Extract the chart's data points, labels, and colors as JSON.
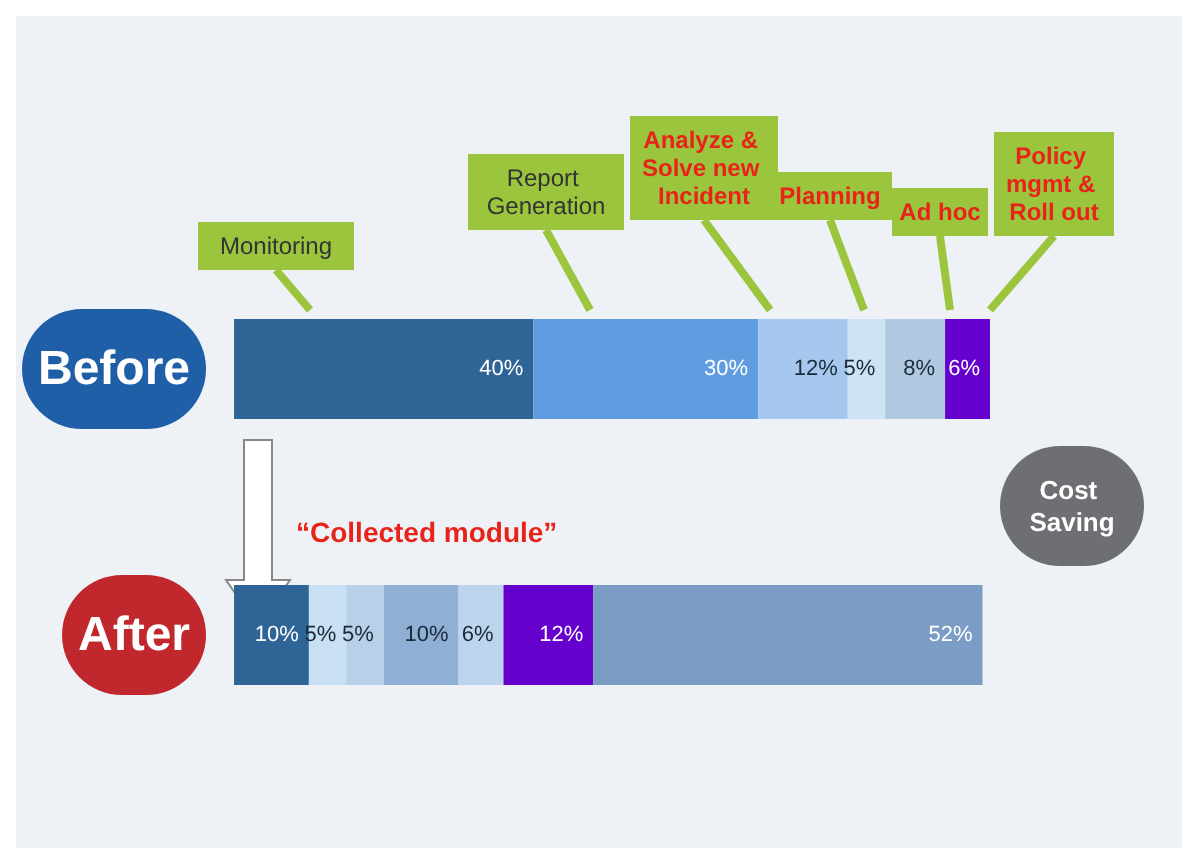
{
  "chart_data": {
    "type": "bar",
    "orientation": "horizontal",
    "stacked": true,
    "tick_labels": "y",
    "categories": [
      "Before",
      "After"
    ],
    "series": [
      {
        "colors": [
          "#2f6496",
          "#2f6496"
        ],
        "values": [
          40,
          10
        ],
        "value_labels": [
          "40%",
          "10%"
        ]
      },
      {
        "colors": [
          "#5f9de0",
          "#c8dff4"
        ],
        "values": [
          30,
          5
        ],
        "value_labels": [
          "30%",
          "5%"
        ]
      },
      {
        "colors": [
          "#a7c8ee",
          "#b8d0e8"
        ],
        "values": [
          12,
          5
        ],
        "value_labels": [
          "12%",
          "5%"
        ]
      },
      {
        "colors": [
          "#cfe3f6",
          "#8fb0d4"
        ],
        "values": [
          5,
          10
        ],
        "value_labels": [
          "5%",
          "10%"
        ]
      },
      {
        "colors": [
          "#b0c8e0",
          "#bcd4ec"
        ],
        "values": [
          8,
          6
        ],
        "value_labels": [
          "8%",
          "6%"
        ]
      },
      {
        "colors": [
          "#6600cc",
          "#6600cc"
        ],
        "values": [
          6,
          12
        ],
        "value_labels": [
          "6%",
          "12%"
        ]
      },
      {
        "colors": [
          "#7b9cc4",
          "#7b9cc4"
        ],
        "values": [
          null,
          52
        ],
        "value_labels": [
          null,
          "52%"
        ]
      }
    ],
    "annotations": [
      "Monitoring",
      "Report Generation",
      "Analyze & Solve new Incident",
      "Planning",
      "Ad hoc",
      "Policy mgmt & Roll out",
      "“Collected module”",
      "Cost Saving"
    ]
  }
}
